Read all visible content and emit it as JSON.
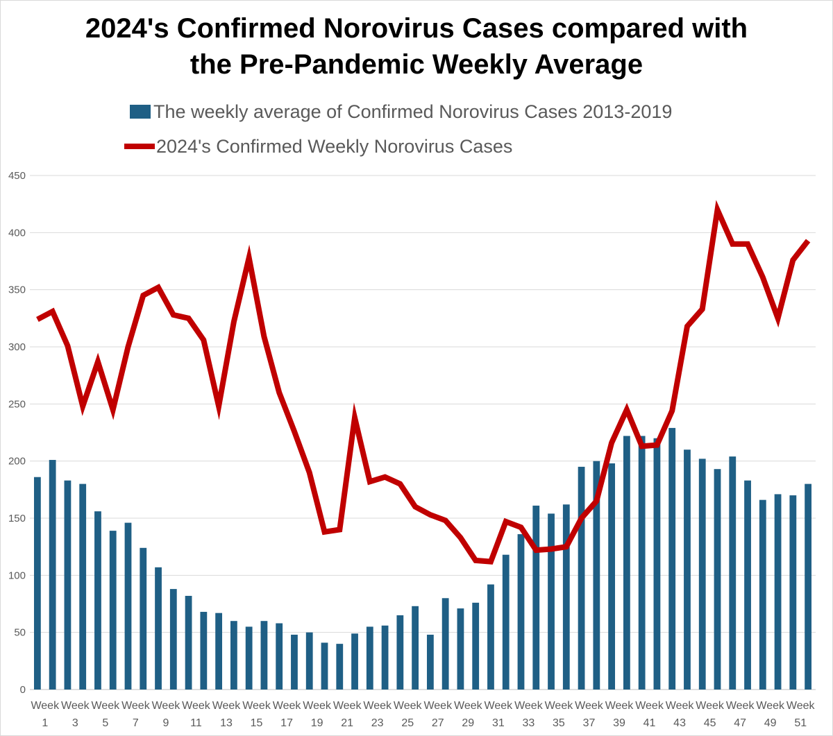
{
  "chart_data": {
    "type": "bar+line",
    "title_lines": [
      "2024's Confirmed Norovirus Cases compared with",
      "the Pre-Pandemic Weekly Average"
    ],
    "xlabel": "",
    "ylabel": "",
    "ylim": [
      0,
      450
    ],
    "yticks": [
      0,
      50,
      100,
      150,
      200,
      250,
      300,
      350,
      400,
      450
    ],
    "grid": true,
    "legend_position": "top",
    "tick_prefix": "Week",
    "categories": [
      1,
      2,
      3,
      4,
      5,
      6,
      7,
      8,
      9,
      10,
      11,
      12,
      13,
      14,
      15,
      16,
      17,
      18,
      19,
      20,
      21,
      22,
      23,
      24,
      25,
      26,
      27,
      28,
      29,
      30,
      31,
      32,
      33,
      34,
      35,
      36,
      37,
      38,
      39,
      40,
      41,
      42,
      43,
      44,
      45,
      46,
      47,
      48,
      49,
      50,
      51,
      52
    ],
    "tick_labels": [
      "1",
      "3",
      "5",
      "7",
      "9",
      "11",
      "13",
      "15",
      "17",
      "19",
      "21",
      "23",
      "25",
      "27",
      "29",
      "31",
      "33",
      "35",
      "37",
      "39",
      "41",
      "43",
      "45",
      "47",
      "49",
      "51"
    ],
    "series": [
      {
        "name": "The weekly average of Confirmed Norovirus Cases 2013-2019",
        "type": "bar",
        "color": "#1f5f85",
        "values": [
          186,
          201,
          183,
          180,
          156,
          139,
          146,
          124,
          107,
          88,
          82,
          68,
          67,
          60,
          55,
          60,
          58,
          48,
          50,
          41,
          40,
          49,
          55,
          56,
          65,
          73,
          48,
          80,
          71,
          76,
          92,
          118,
          136,
          161,
          154,
          162,
          195,
          200,
          198,
          222,
          222,
          220,
          229,
          210,
          202,
          193,
          204,
          183,
          166,
          171,
          170,
          180
        ]
      },
      {
        "name": "2024's Confirmed Weekly Norovirus Cases",
        "type": "line",
        "color": "#c00000",
        "values": [
          324,
          331,
          301,
          248,
          287,
          245,
          300,
          345,
          352,
          328,
          325,
          306,
          248,
          322,
          378,
          309,
          260,
          226,
          190,
          138,
          140,
          238,
          182,
          186,
          180,
          160,
          153,
          148,
          133,
          113,
          112,
          147,
          142,
          122,
          123,
          125,
          150,
          165,
          216,
          245,
          213,
          214,
          244,
          318,
          333,
          420,
          390,
          390,
          361,
          325,
          376,
          393
        ]
      }
    ]
  }
}
